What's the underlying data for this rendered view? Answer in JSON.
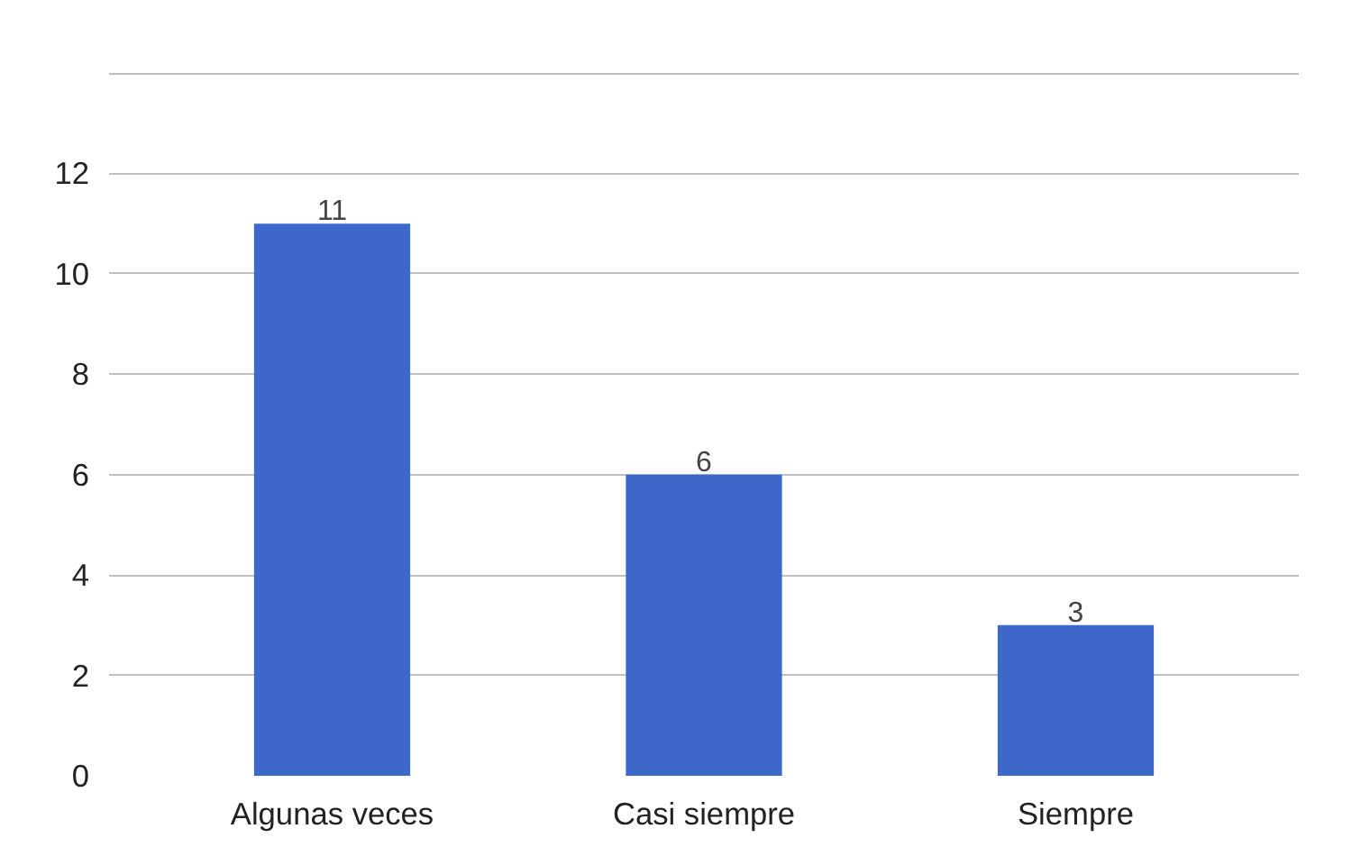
{
  "chart_data": {
    "type": "bar",
    "categories": [
      "Algunas veces",
      "Casi siempre",
      "Siempre"
    ],
    "values": [
      11,
      6,
      3
    ],
    "color": "#3d67c9",
    "ylim": [
      0,
      14
    ],
    "yticks": [
      0,
      2,
      4,
      6,
      8,
      10,
      12,
      {
        "value": 14,
        "label": null
      }
    ],
    "grid": "y",
    "data_labels": true
  }
}
